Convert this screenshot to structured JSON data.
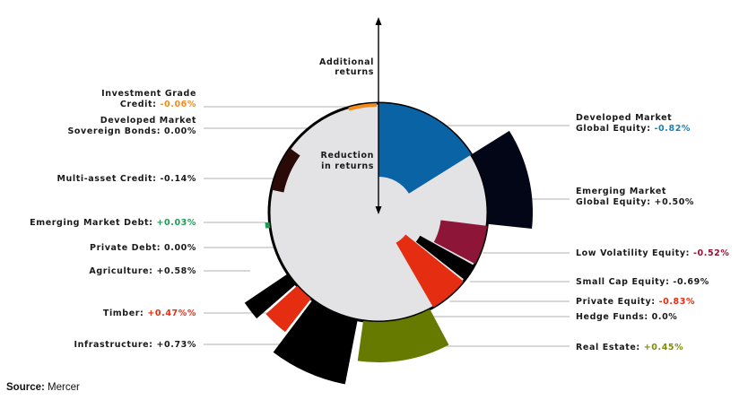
{
  "chart_data": {
    "type": "polar-bar",
    "axis": {
      "up_label": [
        "Additional",
        "returns"
      ],
      "down_label": [
        "Reduction",
        "in returns"
      ]
    },
    "series": [
      {
        "name": "Developed Market Global Equity",
        "label": [
          "Developed Market",
          "Global Equity:"
        ],
        "value_text": "-0.82%",
        "value": -0.82,
        "color": "#0a63a5",
        "value_color": "#1a7fb8",
        "side": "right"
      },
      {
        "name": "Emerging Market Global Equity",
        "label": [
          "Emerging Market",
          "Global Equity:"
        ],
        "value_text": "+0.50%",
        "value": 0.5,
        "color": "#020617",
        "value_color": "#1a1a1a",
        "side": "right"
      },
      {
        "name": "Low Volatility Equity",
        "label": [
          "Low Volatility Equity:"
        ],
        "value_text": "-0.52%",
        "value": -0.52,
        "color": "#8c1538",
        "value_color": "#8c1538",
        "side": "right"
      },
      {
        "name": "Small Cap Equity",
        "label": [
          "Small Cap Equity:"
        ],
        "value_text": "-0.69%",
        "value": -0.69,
        "color": "#000000",
        "value_color": "#1a1a1a",
        "side": "right"
      },
      {
        "name": "Private Equity",
        "label": [
          "Private Equity:"
        ],
        "value_text": "-0.83%",
        "value": -0.83,
        "color": "#e52d12",
        "value_color": "#e52d12",
        "side": "right"
      },
      {
        "name": "Hedge Funds",
        "label": [
          "Hedge Funds:"
        ],
        "value_text": "0.0%",
        "value": 0.0,
        "color": "#777777",
        "value_color": "#1a1a1a",
        "side": "right"
      },
      {
        "name": "Real Estate",
        "label": [
          "Real Estate:"
        ],
        "value_text": "+0.45%",
        "value": 0.45,
        "color": "#677a00",
        "value_color": "#7f8f00",
        "side": "right"
      },
      {
        "name": "Infrastructure",
        "label": [
          "Infrastructure:"
        ],
        "value_text": "+0.73%",
        "value": 0.73,
        "color": "#000000",
        "value_color": "#1a1a1a",
        "side": "left"
      },
      {
        "name": "Timber",
        "label": [
          "Timber:"
        ],
        "value_text": "+0.47%%",
        "value": 0.47,
        "color": "#e52d12",
        "value_color": "#e52d12",
        "side": "left"
      },
      {
        "name": "Agriculture",
        "label": [
          "Agriculture:"
        ],
        "value_text": "+0.58%",
        "value": 0.58,
        "color": "#000000",
        "value_color": "#1a1a1a",
        "side": "left"
      },
      {
        "name": "Private Debt",
        "label": [
          "Private Debt:"
        ],
        "value_text": "0.00%",
        "value": 0.0,
        "color": "#777777",
        "value_color": "#1a1a1a",
        "side": "left"
      },
      {
        "name": "Emerging Market Debt",
        "label": [
          "Emerging Market Debt:"
        ],
        "value_text": "+0.03%",
        "value": 0.03,
        "color": "#1f9a55",
        "value_color": "#1f9a55",
        "side": "left"
      },
      {
        "name": "Multi-asset Credit",
        "label": [
          "Multi-asset Credit:"
        ],
        "value_text": "-0.14%",
        "value": -0.14,
        "color": "#2a0a06",
        "value_color": "#1a1a1a",
        "side": "left"
      },
      {
        "name": "Developed Market Sovereign Bonds",
        "label": [
          "Developed Market",
          "Sovereign Bonds:"
        ],
        "value_text": "0.00%",
        "value": 0.0,
        "color": "#777777",
        "value_color": "#1a1a1a",
        "side": "left"
      },
      {
        "name": "Investment Grade Credit",
        "label": [
          "Investment Grade",
          "Credit:"
        ],
        "value_text": "-0.06%",
        "value": -0.06,
        "color": "#f08c1e",
        "value_color": "#f08c1e",
        "side": "left"
      }
    ]
  },
  "source": {
    "label": "Source:",
    "text": "Mercer"
  }
}
